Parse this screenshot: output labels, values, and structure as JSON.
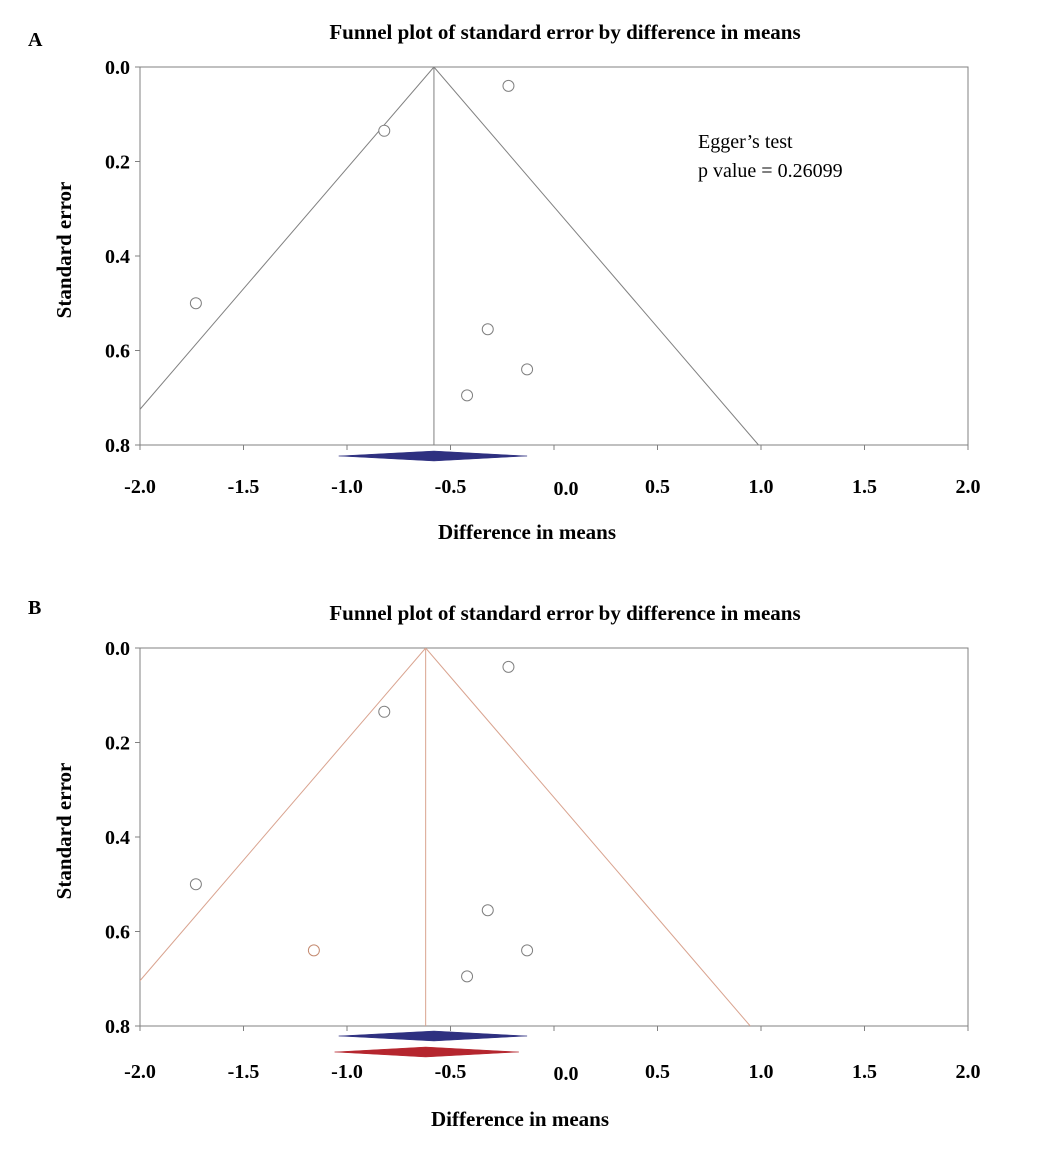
{
  "chart_data": [
    {
      "type": "scatter",
      "panel_label": "A",
      "title": "Funnel plot of standard error by difference in means",
      "xlabel": "Difference in means",
      "ylabel": "Standard error",
      "xlim": [
        -2.0,
        2.0
      ],
      "ylim": [
        0.0,
        0.8
      ],
      "y_inverted": true,
      "xticks": [
        "-2.0",
        "-1.5",
        "-1.0",
        "-0.5",
        "0.0",
        "0.5",
        "1.0",
        "1.5",
        "2.0"
      ],
      "yticks": [
        "0.0",
        "0.2",
        "0.4",
        "0.6",
        "0.8"
      ],
      "xtick_values": [
        -2.0,
        -1.5,
        -1.0,
        -0.5,
        0.0,
        0.5,
        1.0,
        1.5,
        2.0
      ],
      "ytick_values": [
        0.0,
        0.2,
        0.4,
        0.6,
        0.8
      ],
      "grid": false,
      "funnel_center": -0.58,
      "funnel_color": "#808080",
      "points": [
        {
          "x": -0.22,
          "y": 0.04,
          "color": "#808080"
        },
        {
          "x": -0.82,
          "y": 0.135,
          "color": "#808080"
        },
        {
          "x": -1.73,
          "y": 0.5,
          "color": "#808080"
        },
        {
          "x": -0.32,
          "y": 0.555,
          "color": "#808080"
        },
        {
          "x": -0.13,
          "y": 0.64,
          "color": "#808080"
        },
        {
          "x": -0.42,
          "y": 0.695,
          "color": "#808080"
        }
      ],
      "diamonds": [
        {
          "center": -0.58,
          "lower": -1.04,
          "upper": -0.13,
          "color": "#2e3080"
        }
      ],
      "annotation": {
        "line1": "Egger’s test",
        "line2": "p  value = 0.26099"
      }
    },
    {
      "type": "scatter",
      "panel_label": "B",
      "title": "Funnel plot of standard error by difference in means",
      "xlabel": "Difference in means",
      "ylabel": "Standard error",
      "xlim": [
        -2.0,
        2.0
      ],
      "ylim": [
        0.0,
        0.8
      ],
      "y_inverted": true,
      "xticks": [
        "-2.0",
        "-1.5",
        "-1.0",
        "-0.5",
        "0.0",
        "0.5",
        "1.0",
        "1.5",
        "2.0"
      ],
      "yticks": [
        "0.0",
        "0.2",
        "0.4",
        "0.6",
        "0.8"
      ],
      "xtick_values": [
        -2.0,
        -1.5,
        -1.0,
        -0.5,
        0.0,
        0.5,
        1.0,
        1.5,
        2.0
      ],
      "ytick_values": [
        0.0,
        0.2,
        0.4,
        0.6,
        0.8
      ],
      "grid": false,
      "funnel_center": -0.62,
      "funnel_color": "#d9a38f",
      "points": [
        {
          "x": -0.22,
          "y": 0.04,
          "color": "#808080"
        },
        {
          "x": -0.82,
          "y": 0.135,
          "color": "#808080"
        },
        {
          "x": -1.73,
          "y": 0.5,
          "color": "#808080"
        },
        {
          "x": -1.16,
          "y": 0.64,
          "color": "#c48a70"
        },
        {
          "x": -0.32,
          "y": 0.555,
          "color": "#808080"
        },
        {
          "x": -0.13,
          "y": 0.64,
          "color": "#808080"
        },
        {
          "x": -0.42,
          "y": 0.695,
          "color": "#808080"
        }
      ],
      "diamonds": [
        {
          "center": -0.58,
          "lower": -1.04,
          "upper": -0.13,
          "color": "#2e3080",
          "row": 0
        },
        {
          "center": -0.62,
          "lower": -1.06,
          "upper": -0.17,
          "color": "#b5262e",
          "row": 1
        }
      ]
    }
  ]
}
